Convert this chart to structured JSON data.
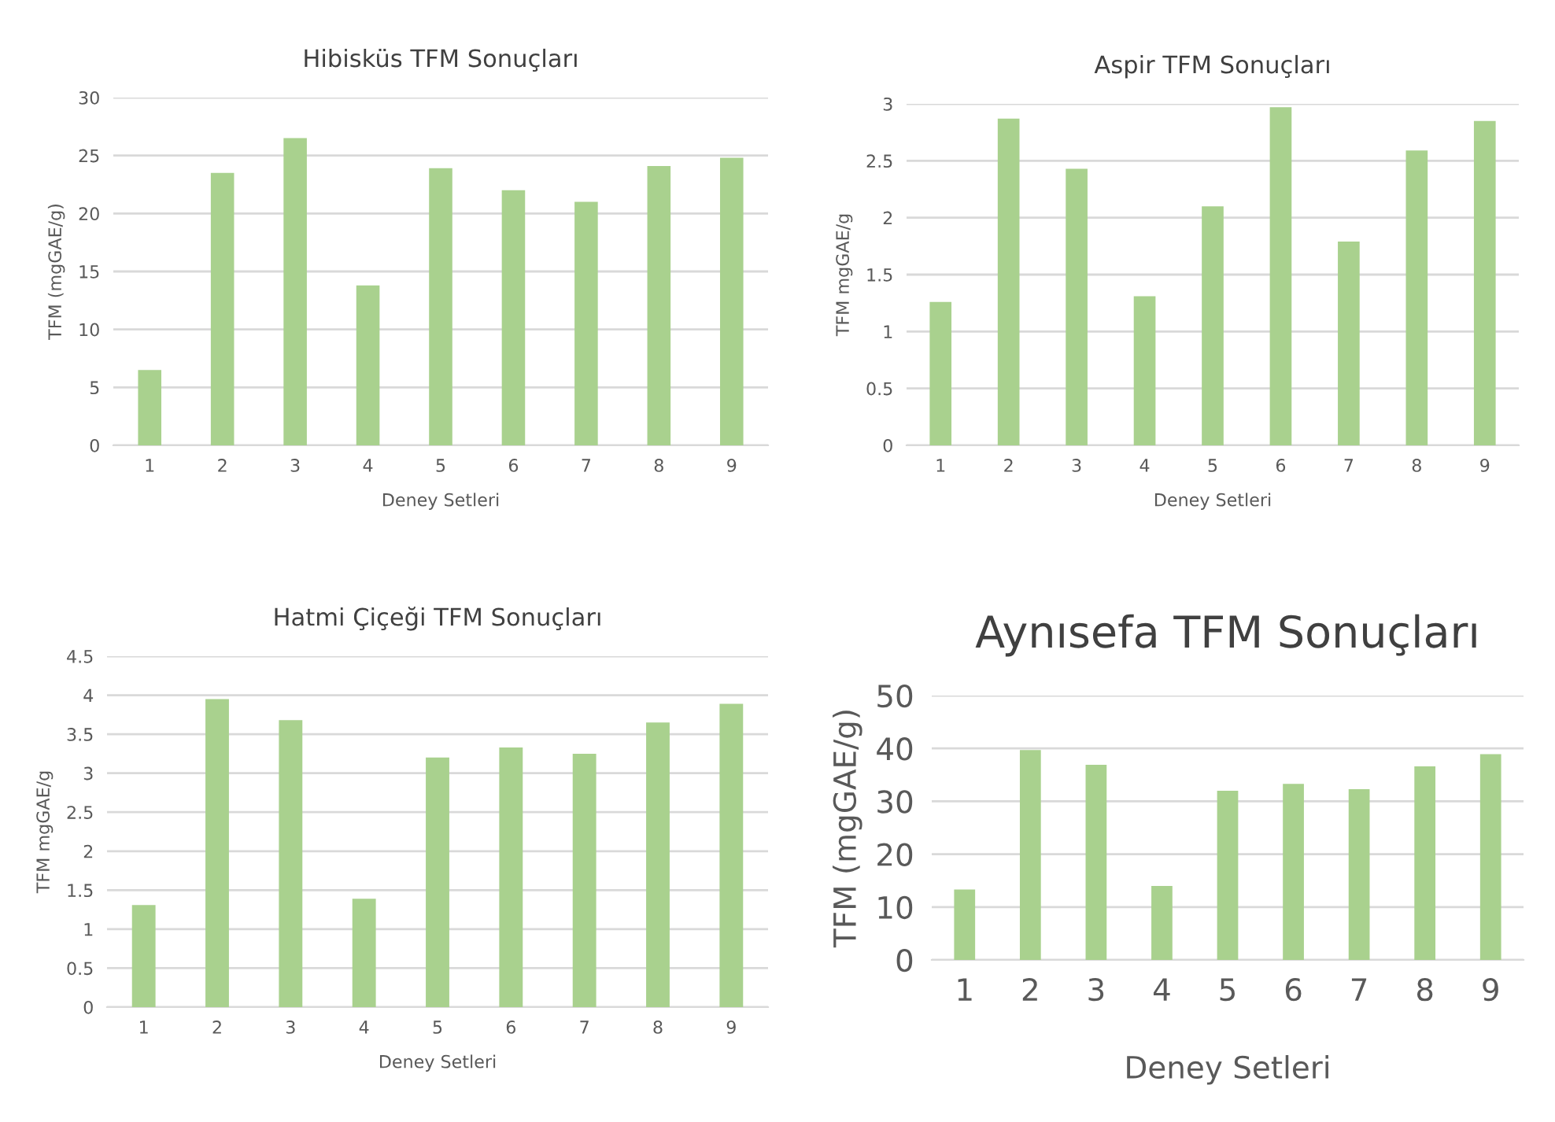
{
  "chart_data": [
    {
      "type": "bar",
      "title": "Hibisküs TFM Sonuçları",
      "xlabel": "Deney Setleri",
      "ylabel": "TFM (mgGAE/g)",
      "categories": [
        "1",
        "2",
        "3",
        "4",
        "5",
        "6",
        "7",
        "8",
        "9"
      ],
      "values": [
        6.5,
        23.5,
        26.5,
        13.8,
        23.9,
        22.0,
        21.0,
        24.1,
        24.8
      ],
      "color": "#a9d18e",
      "ylim": [
        0,
        30
      ],
      "yticks": [
        0,
        5,
        10,
        15,
        20,
        25,
        30
      ],
      "grid": "y"
    },
    {
      "type": "bar",
      "title": "Aspir TFM Sonuçları",
      "xlabel": "Deney Setleri",
      "ylabel": "TFM mgGAE/g",
      "categories": [
        "1",
        "2",
        "3",
        "4",
        "5",
        "6",
        "7",
        "8",
        "9"
      ],
      "values": [
        1.26,
        2.87,
        2.43,
        1.31,
        2.1,
        2.97,
        1.79,
        2.59,
        2.85
      ],
      "color": "#a9d18e",
      "ylim": [
        0,
        3
      ],
      "yticks": [
        0,
        0.5,
        1,
        1.5,
        2,
        2.5,
        3
      ],
      "grid": "y"
    },
    {
      "type": "bar",
      "title": "Hatmi Çiçeği TFM Sonuçları",
      "xlabel": "Deney Setleri",
      "ylabel": "TFM mgGAE/g",
      "categories": [
        "1",
        "2",
        "3",
        "4",
        "5",
        "6",
        "7",
        "8",
        "9"
      ],
      "values": [
        1.31,
        3.95,
        3.68,
        1.39,
        3.2,
        3.33,
        3.25,
        3.65,
        3.89
      ],
      "color": "#a9d18e",
      "ylim": [
        0,
        4.5
      ],
      "yticks": [
        0,
        0.5,
        1,
        1.5,
        2,
        2.5,
        3,
        3.5,
        4,
        4.5
      ],
      "grid": "y"
    },
    {
      "type": "bar",
      "title": "Aynısefa TFM Sonuçları",
      "xlabel": "Deney Setleri",
      "ylabel": "TFM (mgGAE/g)",
      "categories": [
        "1",
        "2",
        "3",
        "4",
        "5",
        "6",
        "7",
        "8",
        "9"
      ],
      "values": [
        13.3,
        39.7,
        36.9,
        14.0,
        32.0,
        33.3,
        32.3,
        36.6,
        38.9
      ],
      "color": "#a9d18e",
      "ylim": [
        0,
        50
      ],
      "yticks": [
        0,
        10,
        20,
        30,
        40,
        50
      ],
      "grid": "y"
    }
  ]
}
